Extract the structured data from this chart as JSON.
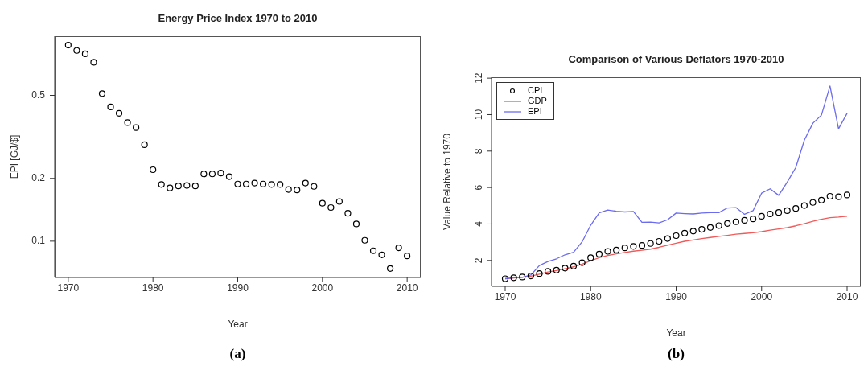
{
  "chart_data": [
    {
      "type": "scatter",
      "title": "Energy Price Index 1970 to 2010",
      "xlabel": "Year",
      "ylabel": "EPI [GJ/$]",
      "annotations": [
        "(a)"
      ],
      "x": [
        1970,
        1971,
        1972,
        1973,
        1974,
        1975,
        1976,
        1977,
        1978,
        1979,
        1980,
        1981,
        1982,
        1983,
        1984,
        1985,
        1986,
        1987,
        1988,
        1989,
        1990,
        1991,
        1992,
        1993,
        1994,
        1995,
        1996,
        1997,
        1998,
        1999,
        2000,
        2001,
        2002,
        2003,
        2004,
        2005,
        2006,
        2007,
        2008,
        2009,
        2010
      ],
      "series": [
        {
          "color": "#000000",
          "values": [
            0.87,
            0.82,
            0.79,
            0.72,
            0.51,
            0.44,
            0.41,
            0.37,
            0.35,
            0.29,
            0.22,
            0.187,
            0.18,
            0.184,
            0.185,
            0.184,
            0.21,
            0.21,
            0.212,
            0.204,
            0.188,
            0.188,
            0.19,
            0.188,
            0.187,
            0.187,
            0.177,
            0.176,
            0.19,
            0.183,
            0.152,
            0.145,
            0.155,
            0.136,
            0.121,
            0.101,
            0.09,
            0.086,
            0.074,
            0.093,
            0.085
          ]
        }
      ],
      "marker": "circle",
      "log": "y",
      "xlim": [
        1968.4,
        2011.6
      ],
      "xticks": [
        1970,
        1980,
        1990,
        2000,
        2010
      ],
      "ylim": [
        0.067,
        0.96
      ],
      "yticks": [
        0.1,
        0.2,
        0.5
      ],
      "grid": false,
      "legend": false
    },
    {
      "type": "line",
      "title": "Comparison of Various Deflators 1970-2010",
      "xlabel": "Year",
      "ylabel": "Value Relative to 1970",
      "annotations": [
        "(b)"
      ],
      "x": [
        1970,
        1971,
        1972,
        1973,
        1974,
        1975,
        1976,
        1977,
        1978,
        1979,
        1980,
        1981,
        1982,
        1983,
        1984,
        1985,
        1986,
        1987,
        1988,
        1989,
        1990,
        1991,
        1992,
        1993,
        1994,
        1995,
        1996,
        1997,
        1998,
        1999,
        2000,
        2001,
        2002,
        2003,
        2004,
        2005,
        2006,
        2007,
        2008,
        2009,
        2010
      ],
      "series": [
        {
          "name": "CPI",
          "type": "scatter",
          "marker": "circle",
          "color": "#000000",
          "values": [
            1.0,
            1.05,
            1.09,
            1.15,
            1.28,
            1.4,
            1.47,
            1.58,
            1.69,
            1.88,
            2.15,
            2.35,
            2.5,
            2.57,
            2.69,
            2.77,
            2.82,
            2.93,
            3.05,
            3.2,
            3.36,
            3.5,
            3.61,
            3.71,
            3.81,
            3.91,
            4.03,
            4.12,
            4.2,
            4.28,
            4.42,
            4.55,
            4.63,
            4.73,
            4.85,
            5.01,
            5.18,
            5.31,
            5.52,
            5.49,
            5.59
          ]
        },
        {
          "name": "GDP",
          "color": "#f05a5a",
          "values": [
            1.0,
            1.04,
            1.08,
            1.14,
            1.25,
            1.37,
            1.45,
            1.55,
            1.65,
            1.8,
            1.98,
            2.15,
            2.27,
            2.36,
            2.44,
            2.51,
            2.56,
            2.62,
            2.72,
            2.84,
            2.95,
            3.05,
            3.12,
            3.2,
            3.26,
            3.32,
            3.38,
            3.44,
            3.48,
            3.52,
            3.58,
            3.66,
            3.73,
            3.8,
            3.9,
            4.02,
            4.15,
            4.26,
            4.35,
            4.38,
            4.43
          ]
        },
        {
          "name": "EPI",
          "color": "#6b6bf0",
          "values": [
            1.0,
            1.05,
            1.07,
            1.2,
            1.72,
            1.94,
            2.09,
            2.31,
            2.45,
            3.02,
            3.93,
            4.61,
            4.77,
            4.7,
            4.66,
            4.69,
            4.09,
            4.1,
            4.06,
            4.23,
            4.6,
            4.57,
            4.55,
            4.6,
            4.62,
            4.62,
            4.88,
            4.9,
            4.53,
            4.73,
            5.69,
            5.93,
            5.57,
            6.3,
            7.1,
            8.6,
            9.53,
            9.97,
            11.57,
            9.22,
            10.07
          ]
        }
      ],
      "xlim": [
        1968.4,
        2011.6
      ],
      "xticks": [
        1970,
        1980,
        1990,
        2000,
        2010
      ],
      "ylim": [
        0.58,
        12.05
      ],
      "yticks": [
        2,
        4,
        6,
        8,
        10,
        12
      ],
      "grid": false,
      "legend": "top left"
    }
  ]
}
